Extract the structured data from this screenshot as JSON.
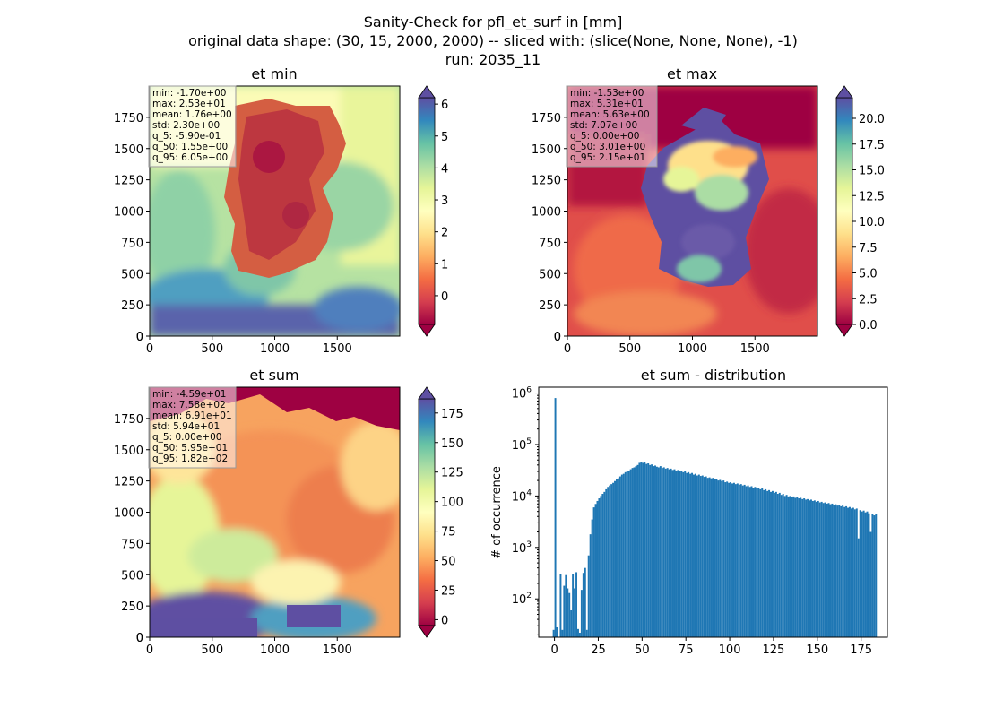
{
  "suptitle": {
    "line1": "Sanity-Check for pfl_et_surf in [mm]",
    "line2": "original data shape: (30, 15, 2000, 2000) -- sliced with: (slice(None, None, None), -1)",
    "line3": "run: 2035_11"
  },
  "chart_data": [
    {
      "type": "heatmap",
      "title": "et min",
      "colormap": "Spectral",
      "xlim": [
        0,
        2000
      ],
      "ylim": [
        0,
        2000
      ],
      "xticks": [
        0,
        500,
        1000,
        1500
      ],
      "yticks": [
        0,
        250,
        500,
        750,
        1000,
        1250,
        1500,
        1750
      ],
      "colorbar": {
        "vmin": -0.9,
        "vmax": 6.2,
        "ticks": [
          0,
          1,
          2,
          3,
          4,
          5,
          6
        ],
        "extend": "both"
      },
      "stats": [
        "min: -1.70e+00",
        "max: 2.53e+01",
        "mean: 1.76e+00",
        "std: 2.30e+00",
        "q_5: -5.90e-01",
        "q_50: 1.55e+00",
        "q_95: 6.05e+00"
      ]
    },
    {
      "type": "heatmap",
      "title": "et max",
      "colormap": "Spectral",
      "xlim": [
        0,
        2000
      ],
      "ylim": [
        0,
        2000
      ],
      "xticks": [
        0,
        500,
        1000,
        1500
      ],
      "yticks": [
        0,
        250,
        500,
        750,
        1000,
        1250,
        1500,
        1750
      ],
      "colorbar": {
        "vmin": 0,
        "vmax": 22,
        "ticks": [
          0.0,
          2.5,
          5.0,
          7.5,
          10.0,
          12.5,
          15.0,
          17.5,
          20.0
        ],
        "extend": "both"
      },
      "stats": [
        "min: -1.53e+00",
        "max: 5.31e+01",
        "mean: 5.63e+00",
        "std: 7.07e+00",
        "q_5: 0.00e+00",
        "q_50: 3.01e+00",
        "q_95: 2.15e+01"
      ]
    },
    {
      "type": "heatmap",
      "title": "et sum",
      "colormap": "Spectral",
      "xlim": [
        0,
        2000
      ],
      "ylim": [
        0,
        2000
      ],
      "xticks": [
        0,
        500,
        1000,
        1500
      ],
      "yticks": [
        0,
        250,
        500,
        750,
        1000,
        1250,
        1500,
        1750
      ],
      "colorbar": {
        "vmin": -5,
        "vmax": 187,
        "ticks": [
          0,
          25,
          50,
          75,
          100,
          125,
          150,
          175
        ],
        "extend": "both"
      },
      "stats": [
        "min: -4.59e+01",
        "max: 7.58e+02",
        "mean: 6.91e+01",
        "std: 5.94e+01",
        "q_5: 0.00e+00",
        "q_50: 5.95e+01",
        "q_95: 1.82e+02"
      ]
    },
    {
      "type": "bar",
      "title": "et sum - distribution",
      "ylabel": "# of occurrence",
      "yscale": "log",
      "xlim": [
        -9,
        190
      ],
      "ylim": [
        18,
        1300000
      ],
      "xticks": [
        0,
        25,
        50,
        75,
        100,
        125,
        150,
        175
      ],
      "yticks": [
        {
          "value": 100,
          "label": "10^2"
        },
        {
          "value": 1000,
          "label": "10^3"
        },
        {
          "value": 10000,
          "label": "10^4"
        },
        {
          "value": 100000,
          "label": "10^5"
        },
        {
          "value": 1000000,
          "label": "10^6"
        }
      ],
      "color": "#1f77b4",
      "bin_width": 1,
      "bin_start": -1,
      "counts": [
        25,
        800000,
        28,
        18,
        300,
        25,
        180,
        290,
        160,
        130,
        60,
        300,
        160,
        330,
        26,
        22,
        150,
        320,
        400,
        25,
        700,
        1800,
        3500,
        6000,
        7000,
        8000,
        9000,
        10000,
        11000,
        12000,
        13500,
        15000,
        16000,
        17000,
        18000,
        19500,
        21000,
        22000,
        24000,
        26000,
        27000,
        29000,
        30000,
        31000,
        33000,
        35000,
        36000,
        38000,
        40000,
        44000,
        46000,
        44000,
        45000,
        42000,
        43000,
        40000,
        41000,
        38000,
        39000,
        37000,
        36000,
        38000,
        35000,
        36000,
        34000,
        35000,
        33000,
        34000,
        32000,
        33000,
        31000,
        32000,
        30000,
        31000,
        29000,
        30000,
        28000,
        29000,
        27000,
        28000,
        26000,
        27000,
        25000,
        26000,
        24500,
        25000,
        23500,
        24000,
        22500,
        23000,
        22000,
        22500,
        21000,
        21500,
        20000,
        20500,
        19500,
        20000,
        18500,
        19000,
        18000,
        18500,
        17500,
        18000,
        17000,
        17500,
        16500,
        17000,
        16000,
        16500,
        15500,
        16000,
        15000,
        15500,
        14500,
        15000,
        14000,
        14500,
        13500,
        14000,
        13000,
        13500,
        12500,
        13000,
        12000,
        12500,
        11500,
        12000,
        11000,
        11500,
        10500,
        11000,
        10000,
        10500,
        9800,
        10000,
        9500,
        9800,
        9200,
        9500,
        9000,
        9200,
        8700,
        9000,
        8500,
        8700,
        8200,
        8500,
        8000,
        8200,
        7700,
        8000,
        7500,
        7700,
        7300,
        7500,
        7100,
        7300,
        6900,
        7100,
        6700,
        6900,
        6500,
        6700,
        6300,
        6500,
        6100,
        6300,
        5900,
        6100,
        5700,
        5900,
        5500,
        5700,
        1500,
        5300,
        5000,
        5200,
        4800,
        5000,
        4600,
        2000,
        4400,
        4200,
        4500
      ]
    }
  ]
}
